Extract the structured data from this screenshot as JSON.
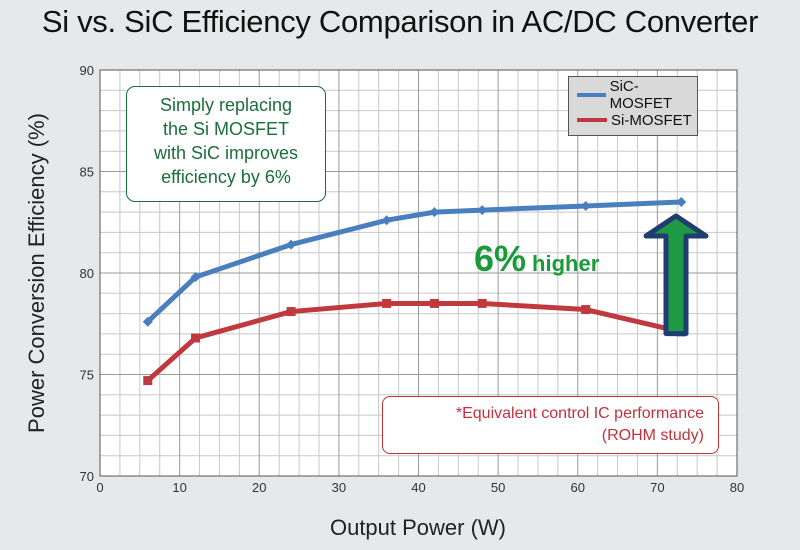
{
  "chart_data": {
    "type": "line",
    "title": "Si vs. SiC Efficiency Comparison in AC/DC Converter",
    "xlabel": "Output Power (W)",
    "ylabel": "Power Conversion Efficiency (%)",
    "xlim": [
      0,
      80
    ],
    "ylim": [
      70,
      90
    ],
    "xticks": [
      0,
      10,
      20,
      30,
      40,
      50,
      60,
      70,
      80
    ],
    "yticks": [
      70,
      75,
      80,
      85,
      90
    ],
    "grid": true,
    "legend_position": "top-right",
    "series": [
      {
        "name": "SiC-MOSFET",
        "color": "#4a7fbf",
        "x": [
          6,
          12,
          24,
          36,
          42,
          48,
          61,
          73
        ],
        "y": [
          77.6,
          79.8,
          81.4,
          82.6,
          83.0,
          83.1,
          83.3,
          83.5
        ]
      },
      {
        "name": "Si-MOSFET",
        "color": "#c0393f",
        "x": [
          6,
          12,
          24,
          36,
          42,
          48,
          61,
          73
        ],
        "y": [
          74.7,
          76.8,
          78.1,
          78.5,
          78.5,
          78.5,
          78.2,
          77.1
        ]
      }
    ],
    "annotations": {
      "improvement_note": [
        "Simply replacing",
        "the Si MOSFET",
        "with SiC improves",
        "efficiency by 6%"
      ],
      "higher_big": "6%",
      "higher_small": "higher",
      "footnote": [
        "*Equivalent control IC performance",
        "(ROHM study)"
      ]
    },
    "colors": {
      "arrow_fill": "#1e9a45",
      "arrow_border": "#1f3d6e",
      "note_green": "#1a6e3a",
      "note_red": "#c2323a"
    }
  }
}
